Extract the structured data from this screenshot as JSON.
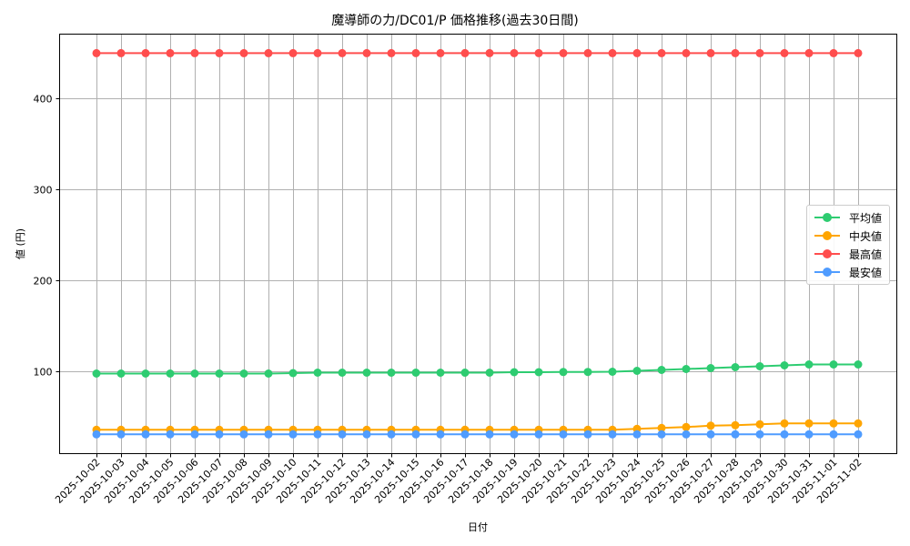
{
  "title": "魔導師の力/DC01/P 価格推移(過去30日間)",
  "legend": [
    {
      "label": "平均値",
      "color": "#2ecc71"
    },
    {
      "label": "中央値",
      "color": "#ffa500"
    },
    {
      "label": "最高値",
      "color": "#ff4d4d"
    },
    {
      "label": "最安値",
      "color": "#4f9cff"
    }
  ],
  "chart_data": {
    "type": "line",
    "title": "魔導師の力/DC01/P 価格推移(過去30日間)",
    "xlabel": "日付",
    "ylabel": "値 (円)",
    "ylim": [
      10,
      471
    ],
    "yticks": [
      100,
      200,
      300,
      400
    ],
    "grid": true,
    "legend_position": "center right",
    "categories": [
      "2025-10-02",
      "2025-10-03",
      "2025-10-04",
      "2025-10-05",
      "2025-10-06",
      "2025-10-07",
      "2025-10-08",
      "2025-10-09",
      "2025-10-10",
      "2025-10-11",
      "2025-10-12",
      "2025-10-13",
      "2025-10-14",
      "2025-10-15",
      "2025-10-16",
      "2025-10-17",
      "2025-10-18",
      "2025-10-19",
      "2025-10-20",
      "2025-10-21",
      "2025-10-22",
      "2025-10-23",
      "2025-10-24",
      "2025-10-25",
      "2025-10-26",
      "2025-10-27",
      "2025-10-28",
      "2025-10-29",
      "2025-10-30",
      "2025-10-31",
      "2025-11-01",
      "2025-11-02"
    ],
    "series": [
      {
        "name": "平均値",
        "color": "#2ecc71",
        "values": [
          97,
          97,
          97,
          97,
          97,
          97,
          97,
          97,
          97.5,
          98,
          98,
          98,
          98,
          98,
          98,
          98,
          98,
          98.5,
          98.5,
          98.7,
          98.8,
          99,
          100,
          101,
          102,
          103,
          104,
          105,
          106,
          107,
          107,
          107
        ]
      },
      {
        "name": "中央値",
        "color": "#ffa500",
        "values": [
          35,
          35,
          35,
          35,
          35,
          35,
          35,
          35,
          35,
          35,
          35,
          35,
          35,
          35,
          35,
          35,
          35,
          35,
          35,
          35,
          35,
          35,
          36,
          37,
          38,
          39.5,
          40,
          41,
          42,
          42,
          42,
          42
        ]
      },
      {
        "name": "最高値",
        "color": "#ff4d4d",
        "values": [
          450,
          450,
          450,
          450,
          450,
          450,
          450,
          450,
          450,
          450,
          450,
          450,
          450,
          450,
          450,
          450,
          450,
          450,
          450,
          450,
          450,
          450,
          450,
          450,
          450,
          450,
          450,
          450,
          450,
          450,
          450,
          450
        ]
      },
      {
        "name": "最安値",
        "color": "#4f9cff",
        "values": [
          30,
          30,
          30,
          30,
          30,
          30,
          30,
          30,
          30,
          30,
          30,
          30,
          30,
          30,
          30,
          30,
          30,
          30,
          30,
          30,
          30,
          30,
          30,
          30,
          30,
          30,
          30,
          30,
          30,
          30,
          30,
          30
        ]
      }
    ]
  }
}
